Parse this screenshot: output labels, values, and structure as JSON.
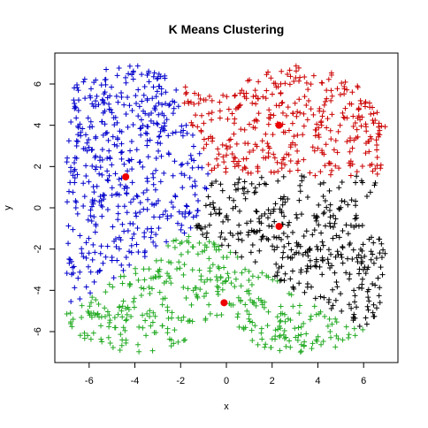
{
  "chart_data": {
    "type": "scatter",
    "title": "K Means Clustering",
    "xlabel": "x",
    "ylabel": "y",
    "xlim": [
      -7.5,
      7.5
    ],
    "ylim": [
      -7.5,
      7.5
    ],
    "xticks": [
      -6,
      -4,
      -2,
      0,
      2,
      4,
      6
    ],
    "yticks": [
      -6,
      -4,
      -2,
      0,
      2,
      4,
      6
    ],
    "marker": "+",
    "grid": false,
    "legend": "none",
    "clusters": [
      {
        "color": "#0000cc",
        "centroid": [
          -4.4,
          1.5
        ],
        "region": "upper-left"
      },
      {
        "color": "#cc0000",
        "centroid": [
          2.3,
          4.0
        ],
        "region": "upper-right"
      },
      {
        "color": "#000000",
        "centroid": [
          2.3,
          -0.9
        ],
        "region": "center-right"
      },
      {
        "color": "#22aa22",
        "centroid": [
          -0.1,
          -4.6
        ],
        "region": "bottom"
      }
    ],
    "centroid_color": "#ee0000"
  }
}
